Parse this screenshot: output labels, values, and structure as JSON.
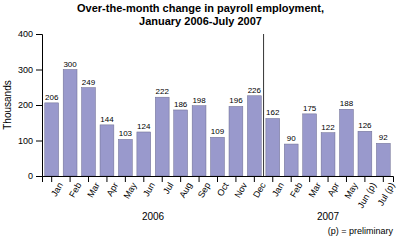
{
  "chart_data": {
    "type": "bar",
    "title": "Over-the-month change in payroll employment,\nJanuary 2006-July 2007",
    "y_label": "Thousands",
    "categories": [
      "Jan",
      "Feb",
      "Mar",
      "Apr",
      "May",
      "Jun",
      "Jul",
      "Aug",
      "Sep",
      "Oct",
      "Nov",
      "Dec",
      "Jan",
      "Feb",
      "Mar",
      "Apr",
      "May",
      "Jun (p)",
      "Jul (p)"
    ],
    "values": [
      206,
      300,
      249,
      144,
      103,
      124,
      222,
      186,
      198,
      109,
      196,
      226,
      162,
      90,
      175,
      122,
      188,
      126,
      92
    ],
    "color": "#9999CC",
    "ylim": [
      0,
      400
    ],
    "yticks": [
      0,
      100,
      200,
      300,
      400
    ],
    "data_labels": true,
    "grid": false,
    "groups": [
      {
        "label": "2006",
        "start": 0
      },
      {
        "label": "2007",
        "start": 12
      }
    ],
    "note": "(p) = preliminary"
  }
}
